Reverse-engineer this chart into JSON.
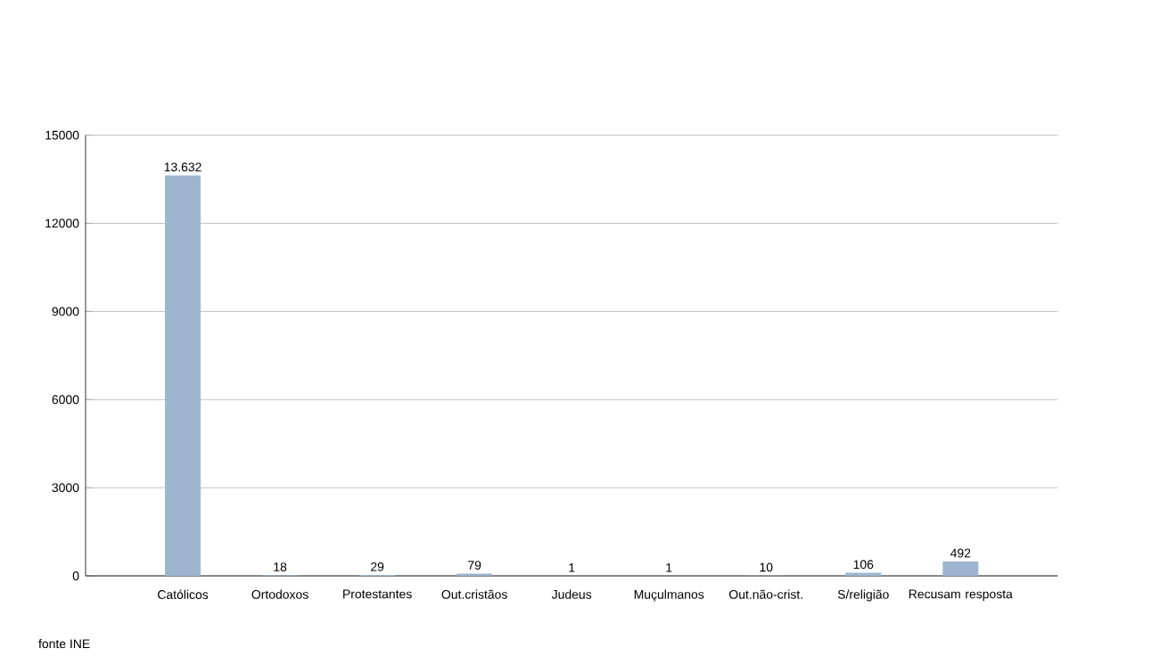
{
  "chart_data": {
    "type": "bar",
    "categories": [
      "Católicos",
      "Ortodoxos",
      "Protestantes",
      "Out.cristãos",
      "Judeus",
      "Muçulmanos",
      "Out.não-crist.",
      "S/religião",
      "Recusam resposta"
    ],
    "values": [
      13632,
      18,
      29,
      79,
      1,
      1,
      10,
      106,
      492
    ],
    "value_labels": [
      "13.632",
      "18",
      "29",
      "79",
      "1",
      "1",
      "10",
      "106",
      "492"
    ],
    "color": "#9db5cf",
    "ylim": [
      0,
      15000
    ],
    "yticks": [
      0,
      3000,
      6000,
      9000,
      12000,
      15000
    ],
    "grid": "y",
    "annotations": [
      "fonte INE"
    ]
  }
}
